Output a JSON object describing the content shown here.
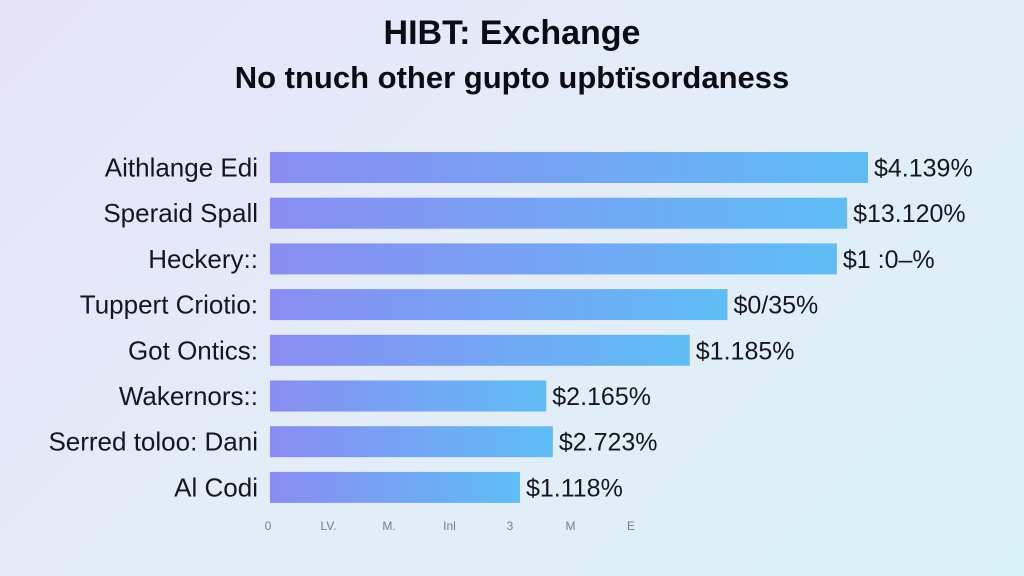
{
  "chart_data": {
    "type": "bar",
    "orientation": "horizontal",
    "title": "HIBT: Exchange",
    "subtitle": "No tnuch other gupto upbtïsordaness",
    "categories": [
      "Aithlange Edi",
      "Speraid Spall",
      "Heckery::",
      "Tuppert Criotio:",
      "Got Ontics:",
      "Wakernors::",
      "Serred toloo: Dani",
      "Al Codi"
    ],
    "values": [
      100,
      96.5,
      94.8,
      76.5,
      70.2,
      46.2,
      47.3,
      41.8
    ],
    "value_labels": [
      "$4.139%",
      "$13.120%",
      "$1 :0–%",
      "$0/35%",
      "$1.185%",
      "$2.165%",
      "$2.723%",
      "$1.118%"
    ],
    "x_tick_labels": [
      "0",
      "LV.",
      "M.",
      "Inl",
      "3",
      "M",
      "E"
    ],
    "xlim": [
      0,
      100
    ],
    "grid": false,
    "legend": "none",
    "colors": {
      "bar_start": "#8a8cf2",
      "bar_end": "#5fbdf5"
    }
  }
}
